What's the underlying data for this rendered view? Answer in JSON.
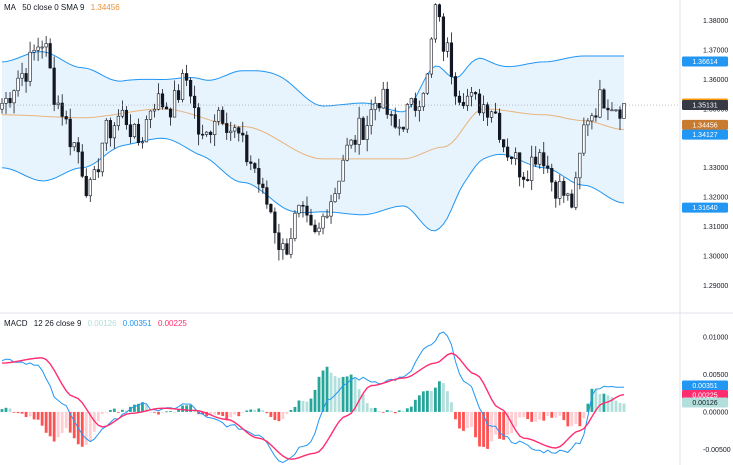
{
  "price_legend": {
    "name": "MA",
    "params": "50 close 0 SMA 9",
    "value": "1.34456"
  },
  "macd_legend": {
    "name": "MACD",
    "params": "12 26 close 9",
    "hist_value": "0.00126",
    "macd_value": "0.00351",
    "signal_value": "0.00225"
  },
  "colors": {
    "up": "#26a69a",
    "down": "#ef5350",
    "candle": "#131722",
    "band": "#2196f3",
    "band_fill": "#e3f2fd",
    "ma": "#e8b37c",
    "macd": "#2196f3",
    "signal": "#ff2d6f",
    "hist_up_strong": "#26a69a",
    "hist_up_weak": "#b2dfdb",
    "hist_down_strong": "#ff5252",
    "hist_down_weak": "#ffcdd2",
    "current_price": "#363a45",
    "ma_tag": "#c87a2e",
    "band_tag": "#2196f3",
    "last_tag": "#ff9800"
  },
  "chart_data": [
    {
      "type": "candlestick",
      "title": "",
      "ylim": [
        1.285,
        1.385
      ],
      "yticks": [
        "1.38000",
        "1.37000",
        "1.36000",
        "1.35000",
        "1.33000",
        "1.32000",
        "1.31000",
        "1.30000",
        "1.29000"
      ],
      "ytick_values": [
        1.38,
        1.37,
        1.36,
        1.35,
        1.33,
        1.32,
        1.31,
        1.3,
        1.29
      ],
      "price_tags": [
        {
          "label": "1.36614",
          "value": 1.36614,
          "color": "#2196f3"
        },
        {
          "label": "1.35184",
          "value": 1.35184,
          "color": "#ff9800"
        },
        {
          "label": "1.35131",
          "value": 1.35131,
          "color": "#363a45"
        },
        {
          "label": "1.34456",
          "value": 1.34456,
          "color": "#c87a2e"
        },
        {
          "label": "1.34127",
          "value": 1.34127,
          "color": "#2196f3"
        },
        {
          "label": "1.31640",
          "value": 1.3164,
          "color": "#2196f3"
        }
      ],
      "close_anchors": [
        [
          0,
          1.352
        ],
        [
          5,
          1.362
        ],
        [
          10,
          1.373
        ],
        [
          14,
          1.352
        ],
        [
          18,
          1.338
        ],
        [
          22,
          1.322
        ],
        [
          26,
          1.342
        ],
        [
          30,
          1.348
        ],
        [
          34,
          1.339
        ],
        [
          38,
          1.353
        ],
        [
          42,
          1.351
        ],
        [
          46,
          1.36
        ],
        [
          50,
          1.339
        ],
        [
          54,
          1.35
        ],
        [
          58,
          1.342
        ],
        [
          62,
          1.332
        ],
        [
          66,
          1.318
        ],
        [
          70,
          1.302
        ],
        [
          74,
          1.314
        ],
        [
          78,
          1.306
        ],
        [
          82,
          1.32
        ],
        [
          86,
          1.336
        ],
        [
          90,
          1.344
        ],
        [
          94,
          1.354
        ],
        [
          98,
          1.343
        ],
        [
          102,
          1.35
        ],
        [
          106,
          1.36
        ],
        [
          108,
          1.384
        ],
        [
          110,
          1.372
        ],
        [
          114,
          1.356
        ],
        [
          118,
          1.352
        ],
        [
          122,
          1.351
        ],
        [
          126,
          1.336
        ],
        [
          130,
          1.329
        ],
        [
          134,
          1.336
        ],
        [
          138,
          1.324
        ],
        [
          142,
          1.318
        ],
        [
          146,
          1.348
        ],
        [
          150,
          1.354
        ],
        [
          154,
          1.351
        ],
        [
          155,
          1.351
        ]
      ],
      "moving_average_anchors": [
        [
          0,
          1.348
        ],
        [
          20,
          1.347
        ],
        [
          40,
          1.35
        ],
        [
          60,
          1.344
        ],
        [
          80,
          1.333
        ],
        [
          100,
          1.333
        ],
        [
          110,
          1.337
        ],
        [
          120,
          1.35
        ],
        [
          135,
          1.348
        ],
        [
          145,
          1.346
        ],
        [
          155,
          1.343
        ]
      ],
      "band_halfwidth_anchors": [
        [
          0,
          0.018
        ],
        [
          10,
          0.022
        ],
        [
          20,
          0.017
        ],
        [
          30,
          0.011
        ],
        [
          40,
          0.01
        ],
        [
          50,
          0.013
        ],
        [
          60,
          0.019
        ],
        [
          70,
          0.022
        ],
        [
          80,
          0.018
        ],
        [
          90,
          0.019
        ],
        [
          100,
          0.016
        ],
        [
          108,
          0.028
        ],
        [
          115,
          0.019
        ],
        [
          125,
          0.015
        ],
        [
          135,
          0.018
        ],
        [
          145,
          0.022
        ],
        [
          155,
          0.025
        ]
      ]
    },
    {
      "type": "macd",
      "ylim": [
        -0.0068,
        0.0125
      ],
      "yticks": [
        "0.01000",
        "0.00500",
        "0.00000",
        "-0.00500"
      ],
      "ytick_values": [
        0.01,
        0.005,
        0.0,
        -0.005
      ],
      "value_tags": [
        {
          "label": "0.00351",
          "value": 0.00351,
          "color": "#2196f3"
        },
        {
          "label": "0.00225",
          "value": 0.00225,
          "color": "#ff2d6f"
        },
        {
          "label": "0.00126",
          "value": 0.00126,
          "color": "#b2dfdb"
        }
      ],
      "macd_anchors": [
        [
          0,
          0.007
        ],
        [
          8,
          0.0065
        ],
        [
          15,
          0.001
        ],
        [
          22,
          -0.004
        ],
        [
          28,
          -0.001
        ],
        [
          34,
          0.001
        ],
        [
          40,
          0.0002
        ],
        [
          46,
          0.001
        ],
        [
          52,
          -0.001
        ],
        [
          58,
          -0.002
        ],
        [
          64,
          -0.003
        ],
        [
          70,
          -0.0066
        ],
        [
          76,
          -0.0042
        ],
        [
          82,
          0.002
        ],
        [
          88,
          0.0045
        ],
        [
          94,
          0.004
        ],
        [
          100,
          0.0045
        ],
        [
          106,
          0.0085
        ],
        [
          110,
          0.0105
        ],
        [
          116,
          0.0035
        ],
        [
          122,
          -0.002
        ],
        [
          128,
          -0.004
        ],
        [
          134,
          -0.0052
        ],
        [
          140,
          -0.0053
        ],
        [
          144,
          -0.004
        ],
        [
          148,
          0.003
        ],
        [
          152,
          0.0035
        ],
        [
          155,
          0.0035
        ]
      ],
      "signal_anchors": [
        [
          0,
          0.0065
        ],
        [
          10,
          0.0072
        ],
        [
          18,
          0.002
        ],
        [
          25,
          -0.002
        ],
        [
          32,
          -0.0002
        ],
        [
          40,
          0.0005
        ],
        [
          48,
          0.0002
        ],
        [
          56,
          -0.001
        ],
        [
          64,
          -0.0035
        ],
        [
          72,
          -0.0063
        ],
        [
          78,
          -0.0055
        ],
        [
          86,
          -0.0005
        ],
        [
          92,
          0.0035
        ],
        [
          100,
          0.0045
        ],
        [
          108,
          0.0065
        ],
        [
          112,
          0.0078
        ],
        [
          118,
          0.005
        ],
        [
          124,
          0.0005
        ],
        [
          130,
          -0.0035
        ],
        [
          138,
          -0.0048
        ],
        [
          144,
          -0.0025
        ],
        [
          150,
          0.0012
        ],
        [
          155,
          0.0023
        ]
      ]
    }
  ]
}
